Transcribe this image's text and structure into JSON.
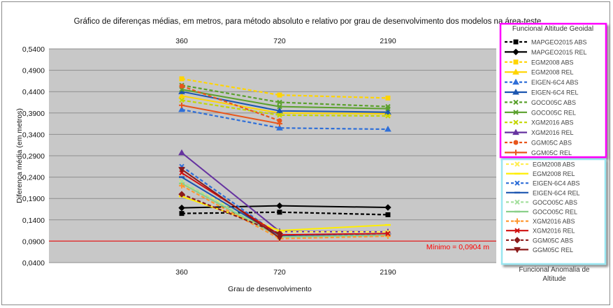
{
  "chart_data": {
    "type": "line",
    "title": "Gráfico de diferenças médias, em metros, para método absoluto e relativo por grau de desenvolvimento dos modelos na  área-teste",
    "xlabel": "Grau de desenvolvimento",
    "ylabel": "Diferença média (em metros)",
    "categories": [
      "360",
      "720",
      "2190"
    ],
    "y_ticks": [
      "0,0400",
      "0,0900",
      "0,1400",
      "0,1900",
      "0,2400",
      "0,2900",
      "0,3400",
      "0,3900",
      "0,4400",
      "0,4900",
      "0,5400"
    ],
    "ylim": [
      0.04,
      0.54
    ],
    "grid": true,
    "threshold": {
      "value": 0.0904,
      "label": "Mínimo = 0,0904 m",
      "color": "#ff0000"
    },
    "legend_group_titles": {
      "geoidal": "Funcional Altitude Geoidal",
      "anomaly": "Funcional Anomalia de Altitude"
    },
    "legend_position": "right",
    "legend_group_border_colors": {
      "geoidal": "#ff00ff",
      "anomaly": "#99e6f0"
    },
    "series": [
      {
        "name": "MAPGEO2015 ABS",
        "group": "geoidal",
        "color": "#000000",
        "dash": true,
        "marker": "square",
        "values": [
          0.155,
          0.158,
          0.152
        ]
      },
      {
        "name": "MAPGEO2015 REL",
        "group": "geoidal",
        "color": "#000000",
        "dash": false,
        "marker": "diamond",
        "values": [
          0.168,
          0.173,
          0.169
        ]
      },
      {
        "name": "EGM2008 ABS",
        "group": "geoidal",
        "color": "#ffd400",
        "dash": true,
        "marker": "square",
        "values": [
          0.47,
          0.432,
          0.425
        ]
      },
      {
        "name": "EGM2008 REL",
        "group": "geoidal",
        "color": "#ffd400",
        "dash": false,
        "marker": "triangle",
        "values": [
          0.43,
          0.39,
          0.388
        ]
      },
      {
        "name": "EIGEN-6C4 ABS",
        "group": "geoidal",
        "color": "#2f6fd8",
        "dash": true,
        "marker": "triangle",
        "values": [
          0.398,
          0.355,
          0.352
        ]
      },
      {
        "name": "EIGEN-6C4 REL",
        "group": "geoidal",
        "color": "#1c56b0",
        "dash": false,
        "marker": "triangle",
        "values": [
          0.44,
          0.395,
          0.392
        ]
      },
      {
        "name": "GOCO05C ABS",
        "group": "geoidal",
        "color": "#5aa02c",
        "dash": true,
        "marker": "x",
        "values": [
          0.455,
          0.415,
          0.405
        ]
      },
      {
        "name": "GOCO05C REL",
        "group": "geoidal",
        "color": "#5aa02c",
        "dash": false,
        "marker": "x",
        "values": [
          0.445,
          0.405,
          0.4
        ]
      },
      {
        "name": "XGM2016 ABS",
        "group": "geoidal",
        "color": "#c4d600",
        "dash": true,
        "marker": "x",
        "values": [
          0.42,
          0.385,
          0.383
        ]
      },
      {
        "name": "XGM2016 REL",
        "group": "geoidal",
        "color": "#6633a0",
        "dash": false,
        "marker": "triangle",
        "values": [
          0.297,
          0.113,
          0.112
        ]
      },
      {
        "name": "GGM05C ABS",
        "group": "geoidal",
        "color": "#e8561c",
        "dash": true,
        "marker": "circle",
        "values": [
          0.453,
          0.372,
          null
        ]
      },
      {
        "name": "GGM05C REL",
        "group": "geoidal",
        "color": "#e8561c",
        "dash": false,
        "marker": "plus",
        "values": [
          0.408,
          0.365,
          null
        ]
      },
      {
        "name": "EGM2008 ABS",
        "group": "anomaly",
        "color": "#ffee55",
        "dash": true,
        "marker": "x",
        "values": [
          0.228,
          0.112,
          0.112
        ]
      },
      {
        "name": "EGM2008 REL",
        "group": "anomaly",
        "color": "#ffee00",
        "dash": false,
        "marker": "dash",
        "values": [
          0.195,
          0.115,
          0.128
        ]
      },
      {
        "name": "EIGEN-6C4 ABS",
        "group": "anomaly",
        "color": "#2f6fd8",
        "dash": true,
        "marker": "x",
        "values": [
          0.265,
          0.103,
          0.108
        ]
      },
      {
        "name": "EIGEN-6C4 REL",
        "group": "anomaly",
        "color": "#1c56b0",
        "dash": false,
        "marker": "dash",
        "values": [
          0.24,
          0.102,
          0.104
        ]
      },
      {
        "name": "GOCO05C ABS",
        "group": "anomaly",
        "color": "#a6e0a0",
        "dash": true,
        "marker": "x",
        "values": [
          0.23,
          0.1,
          0.103
        ]
      },
      {
        "name": "GOCO05C REL",
        "group": "anomaly",
        "color": "#8ad08a",
        "dash": false,
        "marker": "dash",
        "values": [
          0.225,
          0.1,
          0.104
        ]
      },
      {
        "name": "XGM2016 ABS",
        "group": "anomaly",
        "color": "#ff9933",
        "dash": true,
        "marker": "plus",
        "values": [
          0.22,
          0.096,
          0.102
        ]
      },
      {
        "name": "XGM2016 REL",
        "group": "anomaly",
        "color": "#d01010",
        "dash": false,
        "marker": "x",
        "values": [
          0.25,
          0.105,
          0.108
        ]
      },
      {
        "name": "GGM05C ABS",
        "group": "anomaly",
        "color": "#8b1a1a",
        "dash": true,
        "marker": "diamond",
        "values": [
          0.2,
          0.108,
          null
        ]
      },
      {
        "name": "GGM05C REL",
        "group": "anomaly",
        "color": "#8b1a1a",
        "dash": false,
        "marker": "triangle-down",
        "values": [
          0.258,
          0.098,
          null
        ]
      }
    ]
  }
}
